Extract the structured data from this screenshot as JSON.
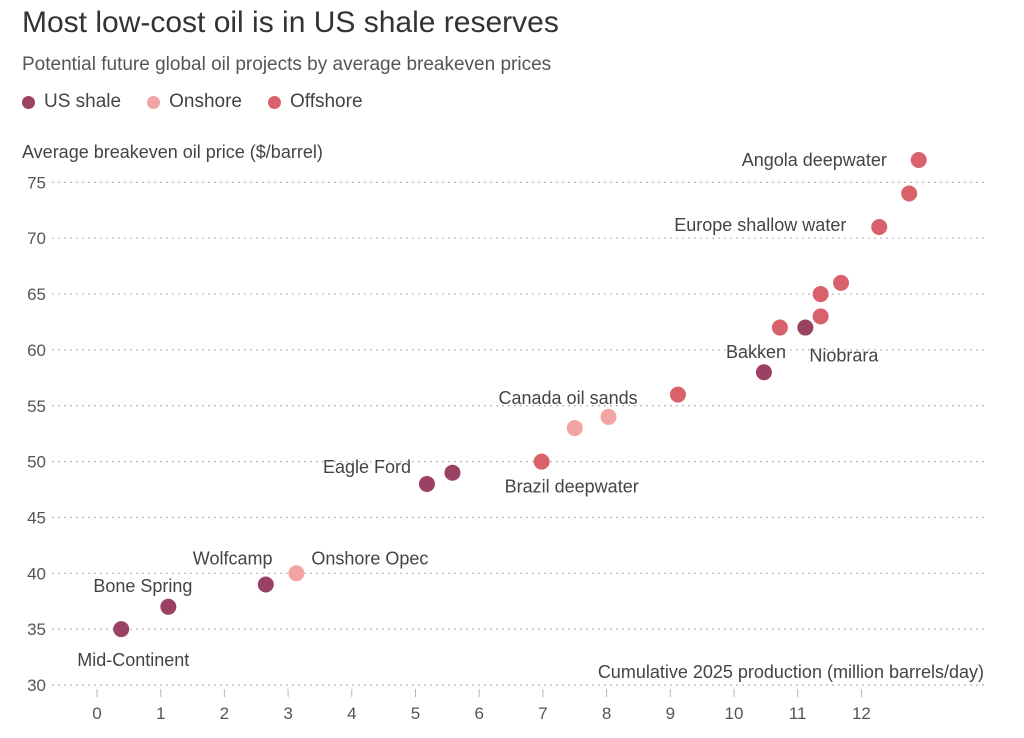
{
  "title": "Most low-cost oil is in US shale reserves",
  "subtitle": "Potential future global oil projects by average breakeven prices",
  "legend": [
    {
      "label": "US shale",
      "color": "#9b4163"
    },
    {
      "label": "Onshore",
      "color": "#f2a3a3"
    },
    {
      "label": "Offshore",
      "color": "#d9616b"
    }
  ],
  "chart_data": {
    "type": "scatter",
    "title": "Most low-cost oil is in US shale reserves",
    "subtitle": "Potential future global oil projects by average breakeven prices",
    "xlabel": "Cumulative 2025 production (million barrels/day)",
    "ylabel": "Average breakeven oil price ($/barrel)",
    "xlim": [
      -0.5,
      13.5
    ],
    "ylim": [
      30,
      77
    ],
    "x_ticks": [
      0,
      1,
      2,
      3,
      4,
      5,
      6,
      7,
      8,
      9,
      10,
      11,
      12
    ],
    "y_ticks": [
      30,
      35,
      40,
      45,
      50,
      55,
      60,
      65,
      70,
      75
    ],
    "grid": "horizontal dotted",
    "legend_placement": "top-left",
    "series": [
      {
        "name": "US shale",
        "color": "#9b4163",
        "points": [
          {
            "x": 0.38,
            "y": 35,
            "label": "Mid-Continent"
          },
          {
            "x": 1.12,
            "y": 37,
            "label": "Bone Spring"
          },
          {
            "x": 2.65,
            "y": 39,
            "label": "Wolfcamp"
          },
          {
            "x": 5.18,
            "y": 48,
            "label": "Eagle Ford"
          },
          {
            "x": 5.58,
            "y": 49,
            "label": ""
          },
          {
            "x": 10.47,
            "y": 58,
            "label": "Bakken"
          },
          {
            "x": 11.12,
            "y": 62,
            "label": "Niobrara"
          }
        ]
      },
      {
        "name": "Onshore",
        "color": "#f2a3a3",
        "points": [
          {
            "x": 3.13,
            "y": 40,
            "label": "Onshore Opec"
          },
          {
            "x": 7.5,
            "y": 53,
            "label": ""
          },
          {
            "x": 8.03,
            "y": 54,
            "label": "Canada oil sands"
          }
        ]
      },
      {
        "name": "Offshore",
        "color": "#d9616b",
        "points": [
          {
            "x": 6.98,
            "y": 50,
            "label": "Brazil deepwater"
          },
          {
            "x": 9.12,
            "y": 56,
            "label": ""
          },
          {
            "x": 10.72,
            "y": 62,
            "label": ""
          },
          {
            "x": 11.36,
            "y": 63,
            "label": ""
          },
          {
            "x": 11.36,
            "y": 65,
            "label": ""
          },
          {
            "x": 11.68,
            "y": 66,
            "label": ""
          },
          {
            "x": 12.28,
            "y": 71,
            "label": "Europe shallow water"
          },
          {
            "x": 12.75,
            "y": 74,
            "label": ""
          },
          {
            "x": 12.9,
            "y": 77,
            "label": "Angola deepwater"
          }
        ]
      }
    ]
  }
}
